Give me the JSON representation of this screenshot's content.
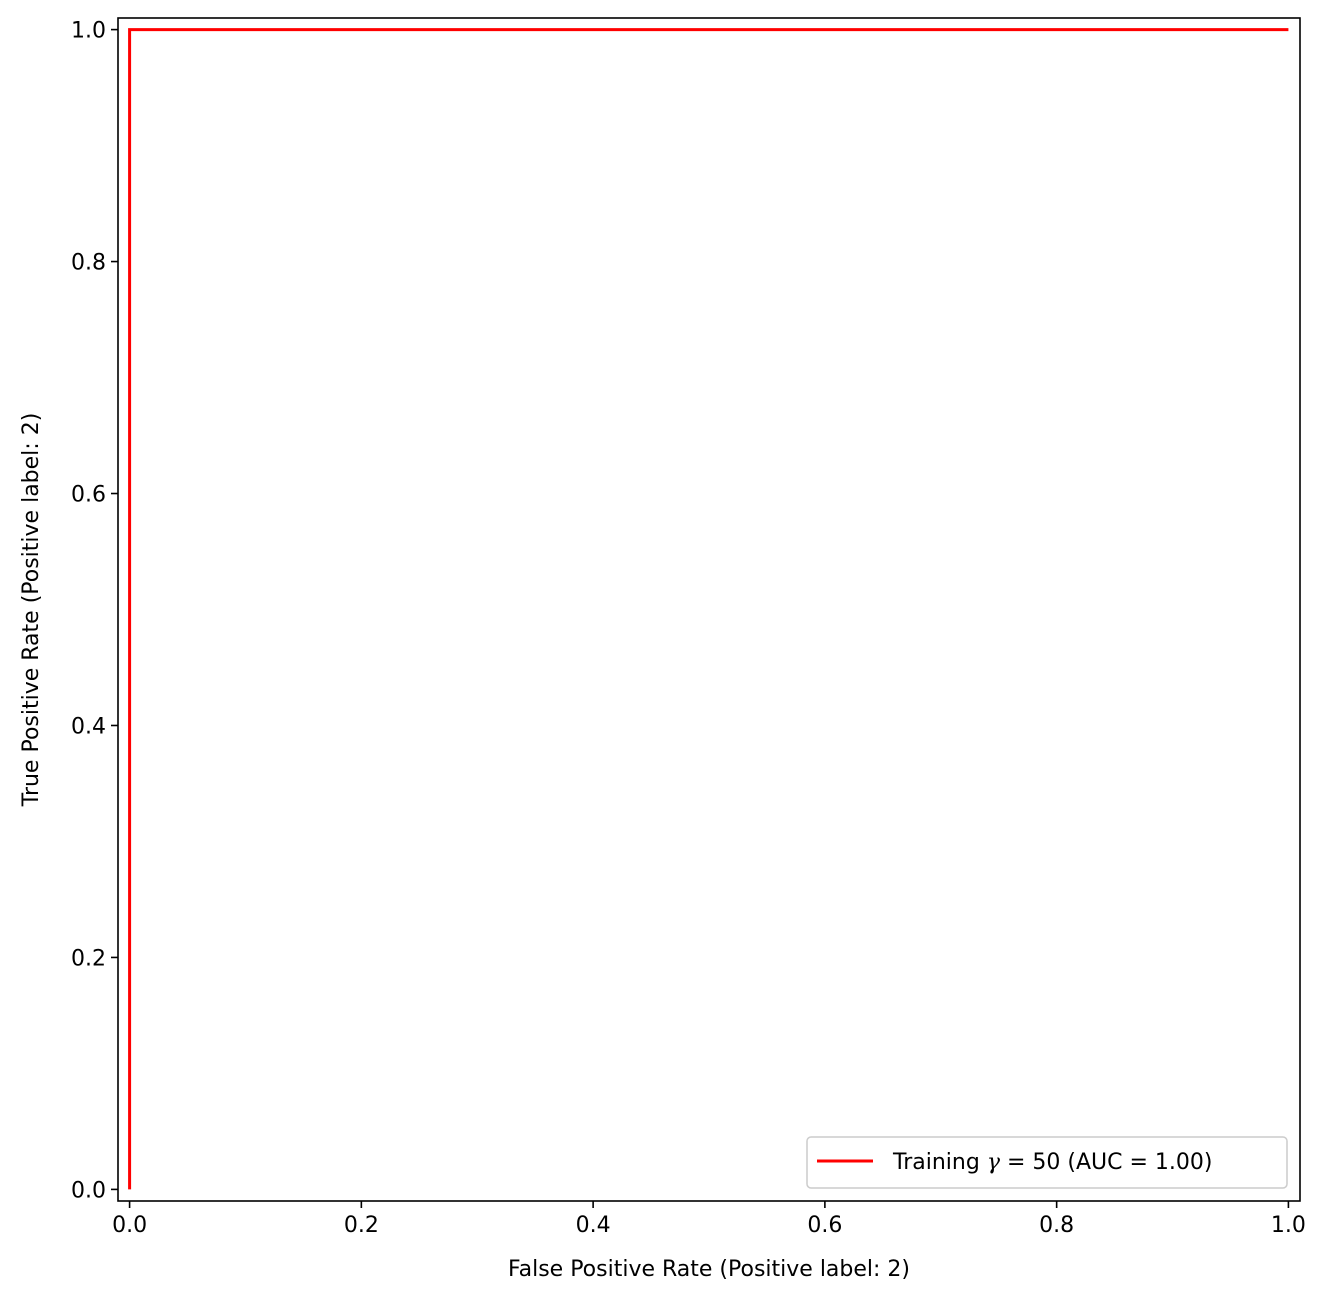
{
  "chart_data": {
    "type": "line",
    "xlabel": "False Positive Rate (Positive label: 2)",
    "ylabel": "True Positive Rate (Positive label: 2)",
    "xlim": [
      -0.01,
      1.01
    ],
    "ylim": [
      -0.01,
      1.01
    ],
    "xticks": [
      0.0,
      0.2,
      0.4,
      0.6,
      0.8,
      1.0
    ],
    "xtick_labels": [
      "0.0",
      "0.2",
      "0.4",
      "0.6",
      "0.8",
      "1.0"
    ],
    "yticks": [
      0.0,
      0.2,
      0.4,
      0.6,
      0.8,
      1.0
    ],
    "ytick_labels": [
      "0.0",
      "0.2",
      "0.4",
      "0.6",
      "0.8",
      "1.0"
    ],
    "grid": false,
    "legend_position": "lower-right",
    "series": [
      {
        "name": "Training γ = 50 (AUC = 1.00)",
        "legend_prefix": "Training ",
        "legend_symbol": "γ",
        "legend_suffix": " = 50 (AUC = 1.00)",
        "color": "#ff0000",
        "x": [
          0.0,
          0.0,
          1.0
        ],
        "y": [
          0.0,
          1.0,
          1.0
        ]
      }
    ]
  }
}
